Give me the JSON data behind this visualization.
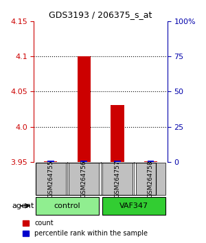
{
  "title": "GDS3193 / 206375_s_at",
  "samples": [
    "GSM264755",
    "GSM264756",
    "GSM264757",
    "GSM264758"
  ],
  "red_values": [
    3.951,
    4.1,
    4.031,
    3.951
  ],
  "blue_values": [
    3.952,
    3.952,
    3.952,
    3.952
  ],
  "ylim": [
    3.95,
    4.15
  ],
  "yticks": [
    3.95,
    4.0,
    4.05,
    4.1,
    4.15
  ],
  "y2ticks": [
    0,
    25,
    50,
    75,
    100
  ],
  "y2labels": [
    "0",
    "25",
    "50",
    "75",
    "100%"
  ],
  "groups": [
    {
      "label": "control",
      "color": "#90EE90",
      "spans": [
        0,
        2
      ]
    },
    {
      "label": "VAF347",
      "color": "#32CD32",
      "spans": [
        2,
        4
      ]
    }
  ],
  "bar_width": 0.4,
  "red_color": "#CC0000",
  "blue_color": "#0000CC",
  "axis_left_color": "#CC0000",
  "axis_right_color": "#0000AA",
  "sample_box_color": "#C0C0C0",
  "legend_red_label": "count",
  "legend_blue_label": "percentile rank within the sample"
}
